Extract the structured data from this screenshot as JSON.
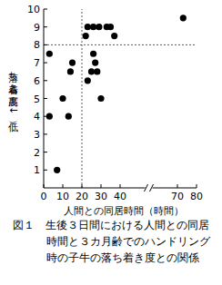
{
  "chart_data": {
    "type": "scatter",
    "title": [
      "図１　生後３日間における人間との同居",
      "時間と３カ月齢でのハンドリング",
      "時の子牛の落ち着き度との関係"
    ],
    "x_label": "人間との同居時間（時間）",
    "y_label": "落ち着き度（高↑－↓低）",
    "x": [
      3,
      3,
      7,
      10,
      13,
      14,
      15,
      22,
      23,
      26,
      29,
      33,
      35,
      37,
      26,
      27,
      25,
      28,
      23,
      30,
      73
    ],
    "values": [
      7.5,
      4,
      1,
      5,
      4,
      6.5,
      7,
      8.5,
      9,
      9,
      9,
      9,
      9,
      8.5,
      7.5,
      7,
      6.5,
      6.5,
      6,
      5,
      9.5
    ],
    "color": "#000000",
    "marker": "circle",
    "xlim": [
      0,
      80
    ],
    "xticks": [
      0,
      10,
      20,
      30,
      40,
      70,
      80
    ],
    "ylim": [
      0,
      10
    ],
    "yticks": [
      1,
      2,
      3,
      4,
      5,
      6,
      7,
      8,
      9,
      10
    ],
    "hlines": [
      8
    ],
    "vlines": [
      20
    ],
    "grid": false
  }
}
